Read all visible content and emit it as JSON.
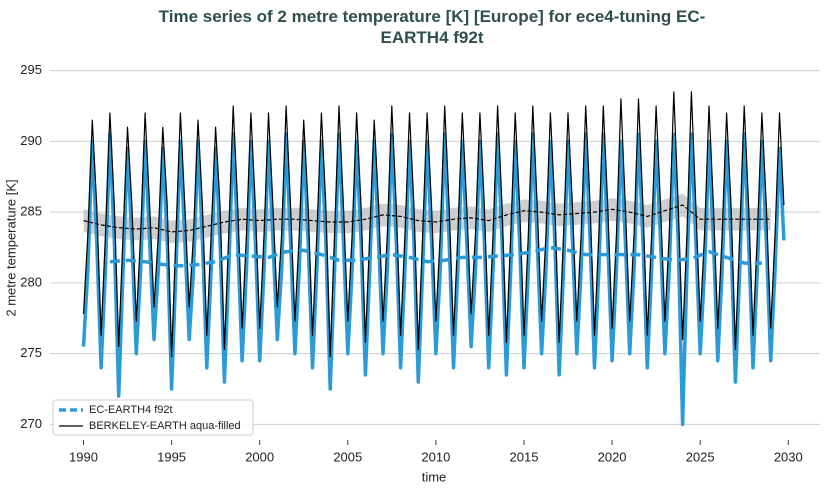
{
  "chart_data": {
    "type": "line",
    "title": "Time series of 2 metre temperature [K] [Europe] for ece4-tuning EC-EARTH4 f92t",
    "xlabel": "time",
    "ylabel": "2 metre temperature [K]",
    "xlim": [
      1988.1,
      2031.8
    ],
    "xticks": [
      1990,
      1995,
      2000,
      2005,
      2010,
      2015,
      2020,
      2025,
      2030
    ],
    "ylim": [
      268.9,
      296.1
    ],
    "yticks": [
      270,
      275,
      280,
      285,
      290,
      295
    ],
    "grid": true,
    "legend": "lower left",
    "x": [
      1990,
      1990.25,
      1990.5,
      1990.75,
      1991,
      1991.25,
      1991.5,
      1991.75,
      1992,
      1992.25,
      1992.5,
      1992.75,
      1993,
      1993.25,
      1993.5,
      1993.75,
      1994,
      1994.25,
      1994.5,
      1994.75,
      1995,
      1995.25,
      1995.5,
      1995.75,
      1996,
      1996.25,
      1996.5,
      1996.75,
      1997,
      1997.25,
      1997.5,
      1997.75,
      1998,
      1998.25,
      1998.5,
      1998.75,
      1999,
      1999.25,
      1999.5,
      1999.75,
      2000,
      2000.25,
      2000.5,
      2000.75,
      2001,
      2001.25,
      2001.5,
      2001.75,
      2002,
      2002.25,
      2002.5,
      2002.75,
      2003,
      2003.25,
      2003.5,
      2003.75,
      2004,
      2004.25,
      2004.5,
      2004.75,
      2005,
      2005.25,
      2005.5,
      2005.75,
      2006,
      2006.25,
      2006.5,
      2006.75,
      2007,
      2007.25,
      2007.5,
      2007.75,
      2008,
      2008.25,
      2008.5,
      2008.75,
      2009,
      2009.25,
      2009.5,
      2009.75,
      2010,
      2010.25,
      2010.5,
      2010.75,
      2011,
      2011.25,
      2011.5,
      2011.75,
      2012,
      2012.25,
      2012.5,
      2012.75,
      2013,
      2013.25,
      2013.5,
      2013.75,
      2014,
      2014.25,
      2014.5,
      2014.75,
      2015,
      2015.25,
      2015.5,
      2015.75,
      2016,
      2016.25,
      2016.5,
      2016.75,
      2017,
      2017.25,
      2017.5,
      2017.75,
      2018,
      2018.25,
      2018.5,
      2018.75,
      2019,
      2019.25,
      2019.5,
      2019.75,
      2020,
      2020.25,
      2020.5,
      2020.75,
      2021,
      2021.25,
      2021.5,
      2021.75,
      2022,
      2022.25,
      2022.5,
      2022.75,
      2023,
      2023.25,
      2023.5,
      2023.75,
      2024,
      2024.25,
      2024.5,
      2024.75,
      2025,
      2025.25,
      2025.5,
      2025.75,
      2026,
      2026.25,
      2026.5,
      2026.75,
      2027,
      2027.25,
      2027.5,
      2027.75,
      2028,
      2028.25,
      2028.5,
      2028.75,
      2029,
      2029.25,
      2029.5,
      2029.75
    ],
    "series": [
      {
        "name": "EC-EARTH4 f92t",
        "color": "#2b9bd8",
        "dashed_legend": true,
        "values": [
          275.5,
          281,
          290,
          283,
          274,
          281,
          290.5,
          283,
          272,
          281,
          289.5,
          283,
          275,
          281,
          290,
          283,
          276,
          281,
          289.5,
          283,
          272.5,
          281,
          290,
          283,
          276,
          281,
          290,
          283,
          274,
          281,
          289.5,
          283,
          273,
          281,
          290.5,
          283,
          274.5,
          281,
          290,
          283,
          274.5,
          281,
          290,
          283,
          276,
          281,
          290.5,
          283,
          275,
          281,
          290,
          283,
          274,
          281,
          290,
          283,
          272.5,
          281,
          290.5,
          283,
          275,
          281,
          290,
          283,
          273.5,
          281,
          290,
          283,
          275,
          281,
          290.5,
          283,
          274,
          281,
          290,
          283,
          273,
          281,
          290,
          283,
          275,
          281,
          290.5,
          283,
          274,
          281,
          290,
          283,
          275.5,
          281,
          290,
          283,
          274,
          281,
          290.5,
          283,
          273.5,
          281,
          290,
          283,
          274,
          281,
          290.5,
          283,
          275,
          281,
          290,
          283,
          273.5,
          281,
          290,
          283,
          275,
          281,
          290.5,
          283,
          274,
          281,
          290.5,
          283,
          274.5,
          281,
          290,
          283,
          275,
          281,
          290.5,
          283,
          274,
          281,
          290,
          283,
          275,
          281,
          290.5,
          283,
          270,
          281,
          290.5,
          283,
          275,
          281,
          290,
          283,
          274.5,
          281,
          290,
          283,
          273,
          281,
          290.5,
          283,
          274,
          281,
          290,
          283,
          274.5,
          281,
          289.5,
          283
        ],
        "running_mean": {
          "x": [
            1991.5,
            1992.5,
            1993.5,
            1994.5,
            1995.5,
            1996.5,
            1997.5,
            1998.5,
            1999.5,
            2000.5,
            2001.5,
            2002.5,
            2003.5,
            2004.5,
            2005.5,
            2006.5,
            2007.5,
            2008.5,
            2009.5,
            2010.5,
            2011.5,
            2012.5,
            2013.5,
            2014.5,
            2015.5,
            2016.5,
            2017.5,
            2018.5,
            2019.5,
            2020.5,
            2021.5,
            2022.5,
            2023.5,
            2024.5,
            2025.5,
            2026.5,
            2027.5,
            2028.5
          ],
          "values": [
            281.5,
            281.6,
            281.5,
            281.3,
            281.2,
            281.3,
            281.5,
            282,
            281.9,
            281.8,
            282.2,
            282.3,
            282,
            281.6,
            281.6,
            281.8,
            282,
            281.8,
            281.5,
            281.6,
            281.8,
            281.8,
            281.9,
            282,
            282.2,
            282.5,
            282.3,
            282,
            282,
            282,
            282,
            281.8,
            281.6,
            281.7,
            282.2,
            281.8,
            281.4,
            281.4
          ]
        }
      },
      {
        "name": "BERKELEY-EARTH aqua-filled",
        "color": "#000000",
        "dashed_legend": false,
        "values": [
          277.8,
          283.5,
          291.5,
          285.5,
          276.3,
          283.5,
          292,
          285.5,
          275.5,
          283.5,
          291,
          285.5,
          277.3,
          283.5,
          292,
          285.5,
          278.3,
          283.5,
          291,
          285.5,
          274.8,
          283.5,
          292,
          285.5,
          278.3,
          283.5,
          291.5,
          285.5,
          276.3,
          283.5,
          291,
          285.5,
          275.3,
          283.5,
          292.5,
          285.5,
          276.8,
          283.5,
          292,
          285.5,
          276.8,
          283.5,
          292,
          285.5,
          278.3,
          283.5,
          292.5,
          285.5,
          277.3,
          283.5,
          291.5,
          285.5,
          276.3,
          283.5,
          292,
          285.5,
          274.8,
          283.5,
          292.5,
          285.5,
          277.3,
          283.5,
          292,
          285.5,
          275.8,
          283.5,
          291.5,
          285.5,
          277.3,
          283.5,
          292.5,
          285.5,
          276.3,
          283.5,
          292,
          285.5,
          275.3,
          283.5,
          292,
          285.5,
          277.3,
          283.5,
          292.5,
          285.5,
          276.3,
          283.5,
          292,
          285.5,
          277.8,
          283.5,
          292,
          285.5,
          276.3,
          283.5,
          292.5,
          285.5,
          275.8,
          283.5,
          292,
          285.5,
          276.3,
          283.5,
          292.5,
          285.5,
          277.3,
          283.5,
          292,
          285.5,
          275.8,
          283.5,
          292,
          285.5,
          277.3,
          283.5,
          292.5,
          285.5,
          276.3,
          283.5,
          292.5,
          285.5,
          276.8,
          283.5,
          293,
          285.5,
          277.3,
          283.5,
          293,
          285.5,
          276.3,
          283.5,
          292.5,
          285.5,
          277.3,
          283.5,
          293.5,
          285.5,
          276,
          283.5,
          293.5,
          285.5,
          277.3,
          283.5,
          292.5,
          285.5,
          276.8,
          283.5,
          292,
          285.5,
          275.3,
          283.5,
          292.5,
          285.5,
          276.3,
          283.5,
          292,
          285.5,
          276.8,
          283.5,
          292,
          285.5
        ],
        "running_mean": {
          "band": 0.8,
          "x": [
            1990,
            1991,
            1992,
            1993,
            1994,
            1995,
            1996,
            1997,
            1998,
            1999,
            2000,
            2001,
            2002,
            2003,
            2004,
            2005,
            2006,
            2007,
            2008,
            2009,
            2010,
            2011,
            2012,
            2013,
            2014,
            2015,
            2016,
            2017,
            2018,
            2019,
            2020,
            2021,
            2022,
            2023,
            2024,
            2025,
            2026,
            2027,
            2028,
            2029
          ],
          "values": [
            284.4,
            284.1,
            283.9,
            283.8,
            283.9,
            283.6,
            283.7,
            284,
            284.3,
            284.5,
            284.4,
            284.5,
            284.5,
            284.4,
            284.3,
            284.3,
            284.5,
            284.8,
            284.7,
            284.4,
            284.3,
            284.5,
            284.6,
            284.4,
            284.8,
            285.1,
            285,
            284.8,
            284.9,
            285,
            285.2,
            285,
            284.7,
            285.1,
            285.5,
            284.5,
            284.5,
            284.5,
            284.5,
            284.5
          ]
        }
      }
    ]
  }
}
